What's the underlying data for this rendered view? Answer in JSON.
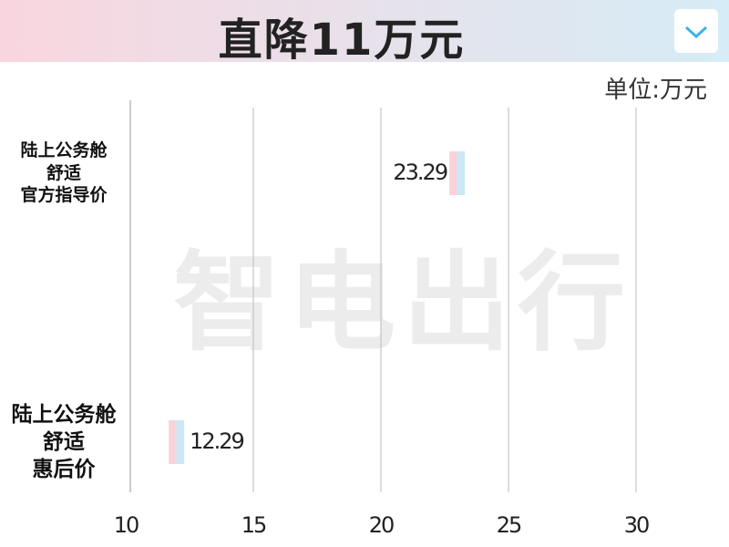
{
  "header": {
    "title": "直降11万元"
  },
  "watermark": "智电出行",
  "chart_data": {
    "type": "barh",
    "unit_label": "单位:万元",
    "categories": [
      "陆上公务舱\n舒适\n官方指导价",
      "陆上公务舱\n舒适\n惠后价"
    ],
    "values": [
      23.29,
      12.29
    ],
    "colors": [
      "#f9d2dc",
      "#cbe8f5"
    ],
    "xlim": [
      10,
      33.5
    ],
    "xticks": [
      10,
      15,
      20,
      25,
      30
    ],
    "grid": true
  }
}
